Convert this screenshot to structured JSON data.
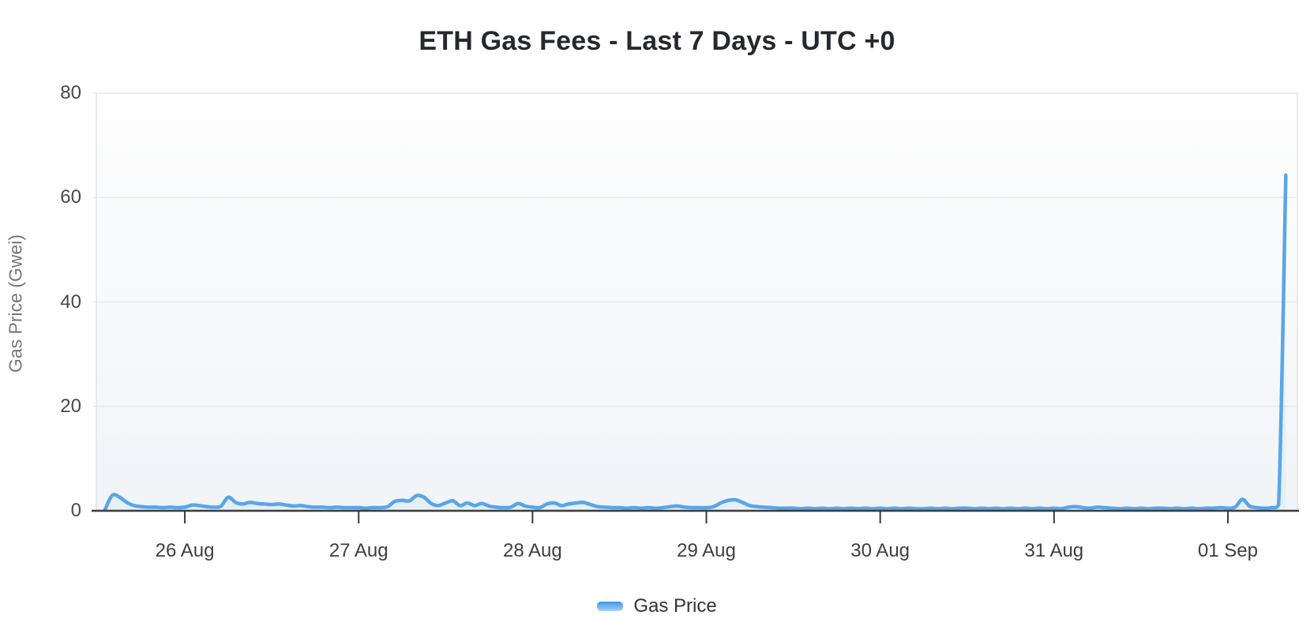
{
  "chart": {
    "title": "ETH Gas Fees - Last 7 Days - UTC +0",
    "ylabel": "Gas Price (Gwei)",
    "legend": {
      "label": "Gas Price"
    }
  },
  "chart_data": {
    "type": "line",
    "title": "ETH Gas Fees - Last 7 Days - UTC +0",
    "xlabel": "",
    "ylabel": "Gas Price (Gwei)",
    "x_tick_labels": [
      "26 Aug",
      "27 Aug",
      "28 Aug",
      "29 Aug",
      "30 Aug",
      "31 Aug",
      "01 Sep"
    ],
    "x_tick_positions_days": [
      0,
      1,
      2,
      3,
      4,
      5,
      6
    ],
    "y_ticks": [
      0,
      20,
      40,
      60,
      80
    ],
    "ylim": [
      0,
      80
    ],
    "x_domain_days": [
      -0.509,
      6.4
    ],
    "grid": "horizontal",
    "legend_position": "bottom",
    "timezone_note": "UTC +0",
    "colors": {
      "line": "#58a6e9",
      "grid": "#e9e9e9",
      "plot_border": "#e2e5e9",
      "axis": "#3b3b3b",
      "area_fill": "rgba(88,166,233,0.07)",
      "plot_bg_top": "#fefefe",
      "plot_bg_bottom": "#f1f4f8",
      "legend_marker_top": "#3e93e6",
      "legend_marker_bottom": "#a6d2f7"
    },
    "series": [
      {
        "name": "Gas Price",
        "unit": "Gwei",
        "points_day_value": [
          [
            -0.458,
            0.3
          ],
          [
            -0.417,
            3.0
          ],
          [
            -0.375,
            2.6
          ],
          [
            -0.333,
            1.6
          ],
          [
            -0.292,
            1.0
          ],
          [
            -0.25,
            0.8
          ],
          [
            -0.208,
            0.7
          ],
          [
            -0.167,
            0.7
          ],
          [
            -0.125,
            0.6
          ],
          [
            -0.083,
            0.7
          ],
          [
            -0.042,
            0.6
          ],
          [
            0.0,
            0.7
          ],
          [
            0.042,
            1.1
          ],
          [
            0.083,
            1.0
          ],
          [
            0.125,
            0.8
          ],
          [
            0.167,
            0.7
          ],
          [
            0.208,
            0.9
          ],
          [
            0.25,
            2.6
          ],
          [
            0.292,
            1.6
          ],
          [
            0.333,
            1.3
          ],
          [
            0.375,
            1.6
          ],
          [
            0.417,
            1.4
          ],
          [
            0.458,
            1.3
          ],
          [
            0.5,
            1.2
          ],
          [
            0.542,
            1.3
          ],
          [
            0.583,
            1.1
          ],
          [
            0.625,
            0.9
          ],
          [
            0.667,
            1.0
          ],
          [
            0.708,
            0.8
          ],
          [
            0.75,
            0.7
          ],
          [
            0.792,
            0.7
          ],
          [
            0.833,
            0.6
          ],
          [
            0.875,
            0.7
          ],
          [
            0.917,
            0.6
          ],
          [
            0.958,
            0.6
          ],
          [
            1.0,
            0.6
          ],
          [
            1.042,
            0.5
          ],
          [
            1.083,
            0.6
          ],
          [
            1.125,
            0.6
          ],
          [
            1.167,
            0.8
          ],
          [
            1.208,
            1.8
          ],
          [
            1.25,
            2.0
          ],
          [
            1.292,
            1.9
          ],
          [
            1.333,
            2.9
          ],
          [
            1.375,
            2.6
          ],
          [
            1.417,
            1.4
          ],
          [
            1.458,
            1.0
          ],
          [
            1.5,
            1.5
          ],
          [
            1.542,
            1.9
          ],
          [
            1.583,
            1.0
          ],
          [
            1.625,
            1.5
          ],
          [
            1.667,
            1.0
          ],
          [
            1.708,
            1.4
          ],
          [
            1.75,
            0.9
          ],
          [
            1.792,
            0.7
          ],
          [
            1.833,
            0.6
          ],
          [
            1.875,
            0.7
          ],
          [
            1.917,
            1.4
          ],
          [
            1.958,
            0.9
          ],
          [
            2.0,
            0.7
          ],
          [
            2.042,
            0.6
          ],
          [
            2.083,
            1.3
          ],
          [
            2.125,
            1.5
          ],
          [
            2.167,
            1.0
          ],
          [
            2.208,
            1.3
          ],
          [
            2.25,
            1.5
          ],
          [
            2.292,
            1.6
          ],
          [
            2.333,
            1.2
          ],
          [
            2.375,
            0.8
          ],
          [
            2.417,
            0.7
          ],
          [
            2.458,
            0.6
          ],
          [
            2.5,
            0.6
          ],
          [
            2.542,
            0.5
          ],
          [
            2.583,
            0.6
          ],
          [
            2.625,
            0.5
          ],
          [
            2.667,
            0.6
          ],
          [
            2.708,
            0.5
          ],
          [
            2.75,
            0.6
          ],
          [
            2.792,
            0.8
          ],
          [
            2.833,
            0.9
          ],
          [
            2.875,
            0.7
          ],
          [
            2.917,
            0.6
          ],
          [
            2.958,
            0.6
          ],
          [
            3.0,
            0.6
          ],
          [
            3.042,
            0.8
          ],
          [
            3.083,
            1.5
          ],
          [
            3.125,
            2.0
          ],
          [
            3.167,
            2.1
          ],
          [
            3.208,
            1.6
          ],
          [
            3.25,
            1.0
          ],
          [
            3.292,
            0.8
          ],
          [
            3.333,
            0.7
          ],
          [
            3.375,
            0.6
          ],
          [
            3.417,
            0.5
          ],
          [
            3.458,
            0.5
          ],
          [
            3.5,
            0.5
          ],
          [
            3.542,
            0.4
          ],
          [
            3.583,
            0.5
          ],
          [
            3.625,
            0.4
          ],
          [
            3.667,
            0.5
          ],
          [
            3.708,
            0.4
          ],
          [
            3.75,
            0.5
          ],
          [
            3.792,
            0.4
          ],
          [
            3.833,
            0.5
          ],
          [
            3.875,
            0.4
          ],
          [
            3.917,
            0.5
          ],
          [
            3.958,
            0.4
          ],
          [
            4.0,
            0.5
          ],
          [
            4.042,
            0.4
          ],
          [
            4.083,
            0.5
          ],
          [
            4.125,
            0.4
          ],
          [
            4.167,
            0.5
          ],
          [
            4.208,
            0.4
          ],
          [
            4.25,
            0.4
          ],
          [
            4.292,
            0.5
          ],
          [
            4.333,
            0.4
          ],
          [
            4.375,
            0.5
          ],
          [
            4.417,
            0.4
          ],
          [
            4.458,
            0.5
          ],
          [
            4.5,
            0.5
          ],
          [
            4.542,
            0.4
          ],
          [
            4.583,
            0.5
          ],
          [
            4.625,
            0.4
          ],
          [
            4.667,
            0.5
          ],
          [
            4.708,
            0.4
          ],
          [
            4.75,
            0.5
          ],
          [
            4.792,
            0.4
          ],
          [
            4.833,
            0.5
          ],
          [
            4.875,
            0.4
          ],
          [
            4.917,
            0.5
          ],
          [
            4.958,
            0.4
          ],
          [
            5.0,
            0.5
          ],
          [
            5.042,
            0.4
          ],
          [
            5.083,
            0.7
          ],
          [
            5.125,
            0.8
          ],
          [
            5.167,
            0.6
          ],
          [
            5.208,
            0.5
          ],
          [
            5.25,
            0.7
          ],
          [
            5.292,
            0.6
          ],
          [
            5.333,
            0.5
          ],
          [
            5.375,
            0.4
          ],
          [
            5.417,
            0.5
          ],
          [
            5.458,
            0.4
          ],
          [
            5.5,
            0.5
          ],
          [
            5.542,
            0.4
          ],
          [
            5.583,
            0.5
          ],
          [
            5.625,
            0.5
          ],
          [
            5.667,
            0.4
          ],
          [
            5.708,
            0.5
          ],
          [
            5.75,
            0.4
          ],
          [
            5.792,
            0.5
          ],
          [
            5.833,
            0.4
          ],
          [
            5.875,
            0.5
          ],
          [
            5.917,
            0.5
          ],
          [
            5.958,
            0.6
          ],
          [
            6.0,
            0.5
          ],
          [
            6.042,
            0.7
          ],
          [
            6.083,
            2.2
          ],
          [
            6.125,
            0.9
          ],
          [
            6.167,
            0.6
          ],
          [
            6.208,
            0.5
          ],
          [
            6.25,
            0.6
          ],
          [
            6.292,
            1.2
          ],
          [
            6.333,
            64.3
          ]
        ]
      }
    ]
  }
}
